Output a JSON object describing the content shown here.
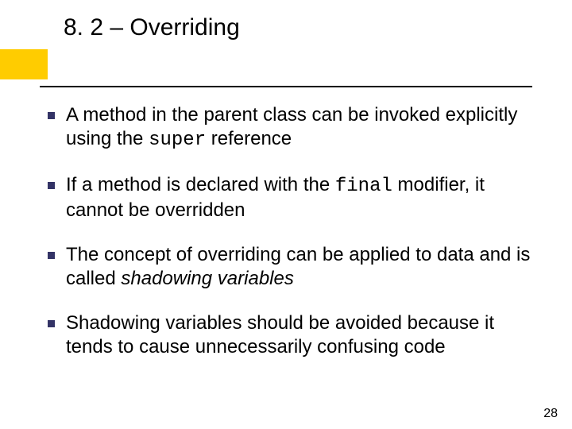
{
  "title": "8. 2 – Overriding",
  "accent_color": "#ffcc00",
  "bullet_color": "#333366",
  "text_color": "#000000",
  "background_color": "#ffffff",
  "title_fontsize": 30,
  "body_fontsize": 24,
  "page_number": "28",
  "bullets": [
    {
      "segments": [
        {
          "t": "A method in the parent class can be invoked explicitly using the ",
          "style": "normal"
        },
        {
          "t": "super",
          "style": "code"
        },
        {
          "t": " reference",
          "style": "normal"
        }
      ]
    },
    {
      "segments": [
        {
          "t": "If a method is declared with the ",
          "style": "normal"
        },
        {
          "t": "final",
          "style": "code"
        },
        {
          "t": " modifier, it cannot be overridden",
          "style": "normal"
        }
      ]
    },
    {
      "segments": [
        {
          "t": "The concept of overriding can be applied to data and is called ",
          "style": "normal"
        },
        {
          "t": "shadowing variables",
          "style": "italic"
        }
      ]
    },
    {
      "segments": [
        {
          "t": "Shadowing variables should be avoided because it tends to cause unnecessarily confusing code",
          "style": "normal"
        }
      ]
    }
  ]
}
